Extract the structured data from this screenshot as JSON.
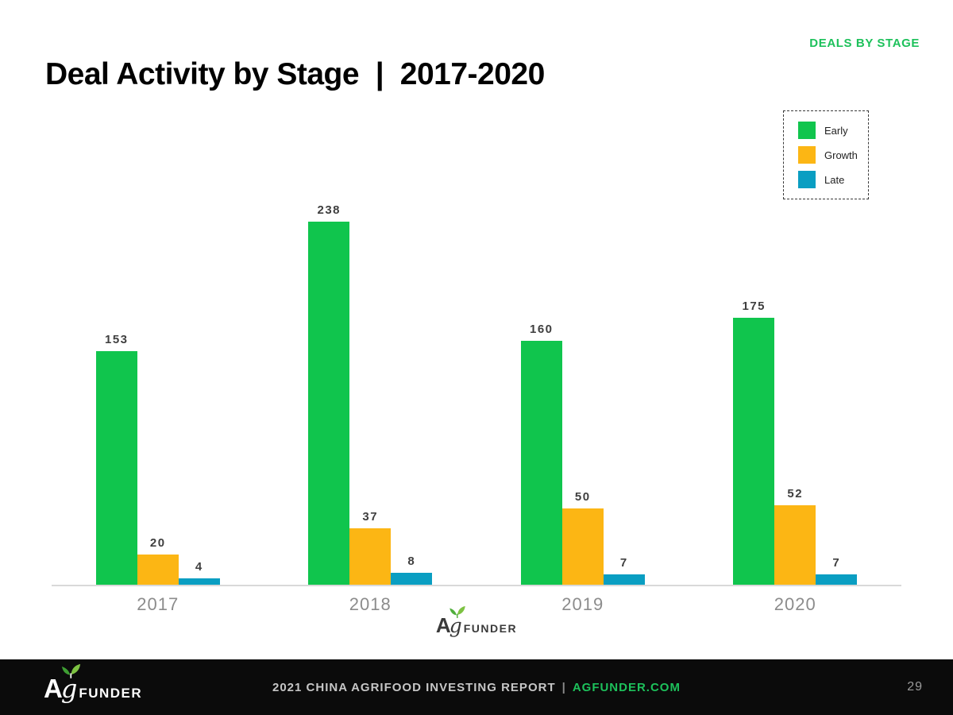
{
  "page": {
    "eyebrow": "DEALS BY STAGE",
    "title": "Deal Activity by Stage  |  2017-2020"
  },
  "logo": {
    "a": "A",
    "g": "g",
    "rest": "FUNDER"
  },
  "footer": {
    "report_text": "2021 CHINA AGRIFOOD INVESTING REPORT",
    "separator": "|",
    "link_text": "AGFUNDER.COM",
    "page_number": "29"
  },
  "colors": {
    "early": "#10C54D",
    "growth": "#FCB614",
    "late": "#0A9EC2",
    "accent_green": "#1DC15B",
    "axis_line": "#D9D9D9",
    "value_label": "#3F3F3F",
    "tick_label": "#8C8C8C"
  },
  "legend": {
    "items": [
      {
        "label": "Early",
        "color_key": "early"
      },
      {
        "label": "Growth",
        "color_key": "growth"
      },
      {
        "label": "Late",
        "color_key": "late"
      }
    ]
  },
  "chart_data": {
    "type": "bar",
    "title": "Deal Activity by Stage | 2017-2020",
    "categories": [
      "2017",
      "2018",
      "2019",
      "2020"
    ],
    "series": [
      {
        "name": "Early",
        "color_key": "early",
        "values": [
          153,
          238,
          160,
          175
        ]
      },
      {
        "name": "Growth",
        "color_key": "growth",
        "values": [
          20,
          37,
          50,
          52
        ]
      },
      {
        "name": "Late",
        "color_key": "late",
        "values": [
          4,
          8,
          7,
          7
        ]
      }
    ],
    "xlabel": "",
    "ylabel": "",
    "ylim": [
      0,
      250
    ],
    "grid": false,
    "value_labels": true,
    "legend_position": "top-right"
  }
}
